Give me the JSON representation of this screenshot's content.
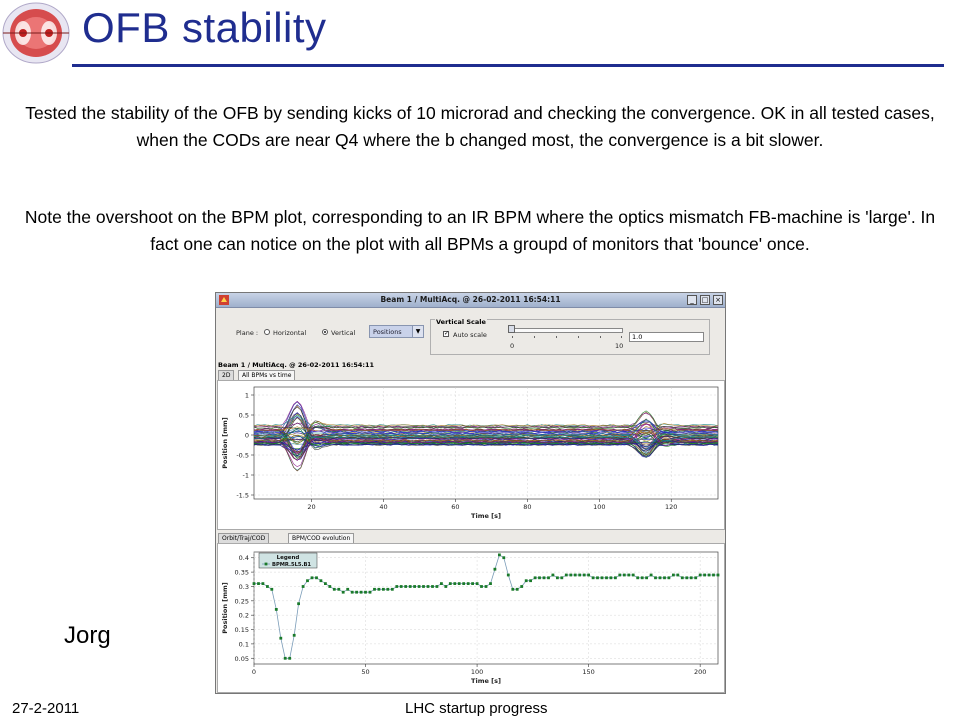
{
  "slide": {
    "title": "OFB stability",
    "paragraph1": "Tested the stability of the OFB by sending kicks of 10 microrad and checking the convergence. OK in all tested cases, when the CODs are near Q4 where the b changed most, the convergence is a bit slower.",
    "paragraph2": "Note the overshoot on the BPM plot, corresponding to an IR BPM where the optics mismatch FB-machine is 'large'. In fact one can notice on the plot with all BPMs a groupd of monitors that 'bounce' once.",
    "presenter": "Jorg",
    "footer_date": "27-2-2011",
    "footer_title": "LHC startup progress",
    "accent_color": "#1f2d8f"
  },
  "app": {
    "window_title": "Beam 1 / MultiAcq. @ 26-02-2011 16:54:11",
    "window_buttons": [
      "_",
      "□",
      "×"
    ],
    "plane_label": "Plane :",
    "plane_options": [
      "Horizontal",
      "Vertical"
    ],
    "plane_selected": "Vertical",
    "mode_select": "Positions",
    "vertical_scale_title": "Vertical Scale",
    "auto_scale_label": "Auto scale",
    "auto_scale_checked": true,
    "scale_min_label": "0",
    "scale_max_label": "10",
    "scale_value": "1.0",
    "subtitle": "Beam 1 / MultiAcq. @ 26-02-2011 16:54:11",
    "top_tabs": [
      "2D",
      "All BPMs vs time"
    ],
    "top_tab_active": "All BPMs vs time",
    "bottom_tabs": [
      "Orbit/Traj/COD",
      "BPM/COD evolution"
    ],
    "bottom_tab_active": "BPM/COD evolution"
  },
  "chart_data": [
    {
      "type": "line",
      "description_series": "many BPM traces (all BPMs vs time)",
      "xlabel": "Time [s]",
      "ylabel": "Position [mm]",
      "xlim": [
        4,
        133
      ],
      "ylim": [
        -1.6,
        1.2
      ],
      "xticks": [
        20,
        40,
        60,
        80,
        100,
        120
      ],
      "yticks": [
        1,
        0.5,
        0,
        -0.5,
        -1,
        -1.5
      ],
      "xtick_labels": [
        "20",
        "40",
        "60",
        "80",
        "100",
        "120"
      ],
      "ytick_labels": [
        "1",
        "0.5",
        "0",
        "-0.5",
        "-1",
        "-1.5"
      ],
      "kick_times": [
        15,
        112
      ],
      "band_halfwidth": 0.25,
      "kick_amplitudes": [
        0.9,
        0.5
      ],
      "colors": [
        "#1b1b9a",
        "#1a7a1a",
        "#8a1a8a",
        "#1a8a8a",
        "#333333",
        "#b07a1a",
        "#2e2ecf",
        "#6a3a1a"
      ]
    },
    {
      "type": "line",
      "xlabel": "Time [s]",
      "ylabel": "Position [mm]",
      "xlim": [
        0,
        208
      ],
      "ylim": [
        0.03,
        0.42
      ],
      "xticks": [
        0,
        50,
        100,
        150,
        200
      ],
      "yticks": [
        0.4,
        0.35,
        0.3,
        0.25,
        0.2,
        0.15,
        0.1,
        0.05
      ],
      "xtick_labels": [
        "0",
        "50",
        "100",
        "150",
        "200"
      ],
      "ytick_labels": [
        "0.4",
        "0.35",
        "0.3",
        "0.25",
        "0.2",
        "0.15",
        "0.1",
        "0.05"
      ],
      "legend_title": "Legend",
      "legend_position": "top-left",
      "series": [
        {
          "name": "BPMR.5L5.B1",
          "color": "#1a7a2a",
          "x": [
            0,
            2,
            4,
            6,
            8,
            10,
            12,
            14,
            16,
            18,
            20,
            22,
            24,
            26,
            28,
            30,
            32,
            34,
            36,
            38,
            40,
            42,
            44,
            46,
            48,
            50,
            52,
            54,
            56,
            58,
            60,
            62,
            64,
            66,
            68,
            70,
            72,
            74,
            76,
            78,
            80,
            82,
            84,
            86,
            88,
            90,
            92,
            94,
            96,
            98,
            100,
            102,
            104,
            106,
            108,
            110,
            112,
            114,
            116,
            118,
            120,
            122,
            124,
            126,
            128,
            130,
            132,
            134,
            136,
            138,
            140,
            142,
            144,
            146,
            148,
            150,
            152,
            154,
            156,
            158,
            160,
            162,
            164,
            166,
            168,
            170,
            172,
            174,
            176,
            178,
            180,
            182,
            184,
            186,
            188,
            190,
            192,
            194,
            196,
            198,
            200,
            202,
            204,
            206,
            208
          ],
          "y": [
            0.31,
            0.31,
            0.31,
            0.3,
            0.29,
            0.22,
            0.12,
            0.05,
            0.05,
            0.13,
            0.24,
            0.3,
            0.32,
            0.33,
            0.33,
            0.32,
            0.31,
            0.3,
            0.29,
            0.29,
            0.28,
            0.29,
            0.28,
            0.28,
            0.28,
            0.28,
            0.28,
            0.29,
            0.29,
            0.29,
            0.29,
            0.29,
            0.3,
            0.3,
            0.3,
            0.3,
            0.3,
            0.3,
            0.3,
            0.3,
            0.3,
            0.3,
            0.31,
            0.3,
            0.31,
            0.31,
            0.31,
            0.31,
            0.31,
            0.31,
            0.31,
            0.3,
            0.3,
            0.31,
            0.36,
            0.41,
            0.4,
            0.34,
            0.29,
            0.29,
            0.3,
            0.32,
            0.32,
            0.33,
            0.33,
            0.33,
            0.33,
            0.34,
            0.33,
            0.33,
            0.34,
            0.34,
            0.34,
            0.34,
            0.34,
            0.34,
            0.33,
            0.33,
            0.33,
            0.33,
            0.33,
            0.33,
            0.34,
            0.34,
            0.34,
            0.34,
            0.33,
            0.33,
            0.33,
            0.34,
            0.33,
            0.33,
            0.33,
            0.33,
            0.34,
            0.34,
            0.33,
            0.33,
            0.33,
            0.33,
            0.34,
            0.34,
            0.34,
            0.34,
            0.34
          ]
        }
      ]
    }
  ]
}
